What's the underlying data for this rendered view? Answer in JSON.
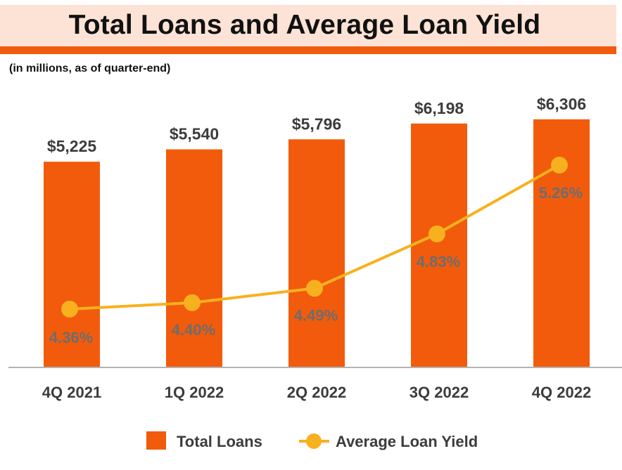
{
  "header": {
    "title": "Total Loans and Average Loan Yield",
    "subtitle": "(in millions, as of quarter-end)"
  },
  "colors": {
    "bar": "#f25b0c",
    "line": "#f7b11e",
    "title_band": "#fde3d6"
  },
  "chart_data": {
    "type": "bar",
    "title": "Total Loans and Average Loan Yield",
    "subtitle": "(in millions, as of quarter-end)",
    "categories": [
      "4Q 2021",
      "1Q 2022",
      "2Q 2022",
      "3Q 2022",
      "4Q 2022"
    ],
    "series": [
      {
        "name": "Total Loans",
        "type": "bar",
        "values": [
          5225,
          5540,
          5796,
          6198,
          6306
        ],
        "labels": [
          "$5,225",
          "$5,540",
          "$5,796",
          "$6,198",
          "$6,306"
        ],
        "color": "#f25b0c"
      },
      {
        "name": "Average Loan Yield",
        "type": "line",
        "values": [
          4.36,
          4.4,
          4.49,
          4.83,
          5.26
        ],
        "labels": [
          "4.36%",
          "4.40%",
          "4.49%",
          "4.83%",
          "5.26%"
        ],
        "color": "#f7b11e"
      }
    ],
    "legend_position": "bottom",
    "grid": false
  },
  "legend": {
    "items": [
      "Total Loans",
      "Average Loan Yield"
    ]
  }
}
